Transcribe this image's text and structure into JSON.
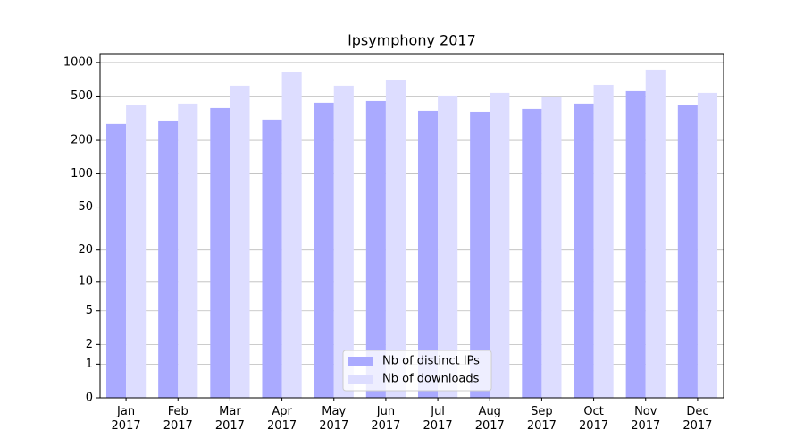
{
  "chart_data": {
    "type": "bar",
    "title": "lpsymphony 2017",
    "categories": [
      "Jan\n2017",
      "Feb\n2017",
      "Mar\n2017",
      "Apr\n2017",
      "May\n2017",
      "Jun\n2017",
      "Jul\n2017",
      "Aug\n2017",
      "Sep\n2017",
      "Oct\n2017",
      "Nov\n2017",
      "Dec\n2017"
    ],
    "series": [
      {
        "name": "Nb of distinct IPs",
        "color": "#aaaaff",
        "values": [
          280,
          301,
          390,
          307,
          436,
          452,
          369,
          362,
          383,
          428,
          554,
          412
        ]
      },
      {
        "name": "Nb of downloads",
        "color": "#ddddff",
        "values": [
          412,
          428,
          619,
          816,
          619,
          691,
          505,
          534,
          496,
          630,
          862,
          534
        ]
      }
    ],
    "scale": "log1p",
    "ylim": [
      0,
      1200
    ],
    "yticks": [
      0,
      1,
      2,
      5,
      10,
      20,
      50,
      100,
      200,
      500,
      1000
    ],
    "grid": true,
    "legend": "lower center"
  }
}
